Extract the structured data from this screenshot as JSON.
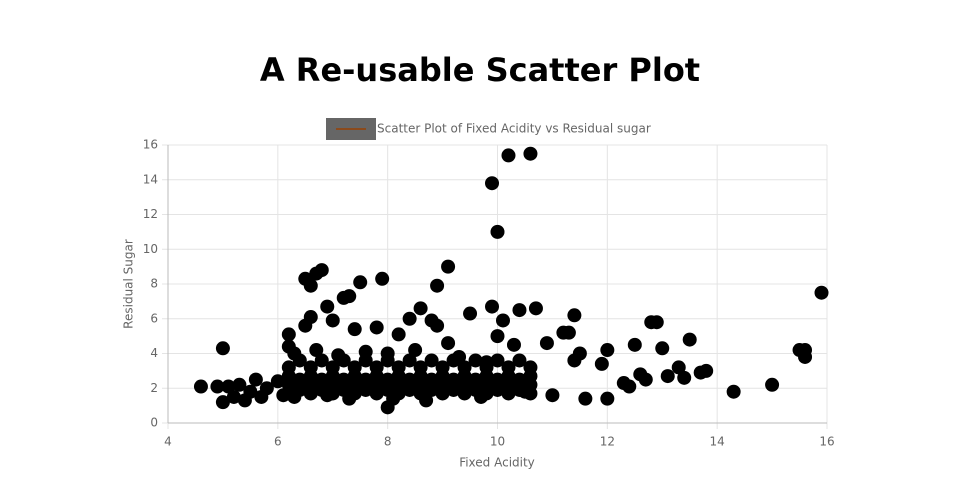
{
  "chart_data": {
    "type": "scatter",
    "title": "A Re-usable Scatter Plot",
    "x_label": "Fixed Acidity",
    "y_label": "Residual Sugar",
    "xlim": [
      4,
      16
    ],
    "xticks": [
      4,
      6,
      8,
      10,
      12,
      14,
      16
    ],
    "ylim": [
      0,
      16
    ],
    "yticks": [
      0,
      2,
      4,
      6,
      8,
      10,
      12,
      14,
      16
    ],
    "grid": true,
    "legend": "top",
    "x": [
      4.6,
      5.0,
      6.5,
      6.7,
      6.8,
      6.9,
      7.2,
      7.3,
      7.5,
      7.9,
      8.9,
      9.1,
      9.9,
      10.0,
      10.2,
      10.6,
      9.9,
      10.7,
      10.4,
      9.5,
      11.4,
      12.8,
      12.9,
      13.5,
      15.9,
      15.5,
      15.6,
      15.6,
      15.0,
      14.3,
      13.8,
      13.7,
      13.3,
      13.0,
      12.5,
      12.0,
      11.2,
      11.3,
      10.9,
      8.0,
      6.2,
      6.2,
      6.5,
      6.6,
      6.6,
      7.0,
      7.4,
      7.8,
      8.2,
      8.4,
      8.6,
      8.8,
      8.9,
      9.1,
      10.0,
      10.1,
      10.3,
      11.4,
      11.5,
      11.9,
      12.3,
      12.4,
      12.6,
      12.7,
      13.1,
      13.4,
      12.0,
      11.6,
      11.0,
      10.5,
      9.7,
      8.7,
      8.1,
      7.3,
      6.9,
      6.3,
      5.0,
      5.2,
      5.4,
      5.6,
      5.8,
      6.0,
      6.1,
      5.1,
      5.3,
      4.9,
      5.5,
      5.7,
      6.2,
      6.2,
      6.2,
      6.2,
      6.6,
      6.6,
      6.6,
      6.6,
      7.0,
      7.0,
      7.0,
      7.0,
      7.4,
      7.4,
      7.4,
      7.4,
      7.8,
      7.8,
      7.8,
      7.8,
      8.2,
      8.2,
      8.2,
      8.2,
      8.6,
      8.6,
      8.6,
      8.6,
      9.0,
      9.0,
      9.0,
      9.0,
      9.4,
      9.4,
      9.4,
      9.4,
      9.8,
      9.8,
      9.8,
      9.8,
      10.2,
      10.2,
      10.2,
      10.2,
      10.6,
      10.6,
      10.6,
      10.6,
      6.4,
      6.4,
      6.4,
      6.8,
      6.8,
      6.8,
      7.2,
      7.2,
      7.2,
      7.6,
      7.6,
      7.6,
      8.0,
      8.0,
      8.0,
      8.4,
      8.4,
      8.4,
      8.8,
      8.8,
      8.8,
      9.2,
      9.2,
      9.2,
      9.6,
      9.6,
      9.6,
      10.0,
      10.0,
      10.0,
      10.4,
      10.4,
      10.4,
      6.3,
      6.7,
      7.1,
      7.6,
      8.0,
      8.5,
      9.3,
      9.8
    ],
    "series": [
      {
        "name": "Scatter Plot of Fixed Acidity vs Residual sugar",
        "color": "#000000",
        "legend_line": "#8b4a1c",
        "legend_fill": "#666666",
        "values": [
          2.1,
          4.3,
          8.3,
          8.6,
          8.8,
          6.7,
          7.2,
          7.3,
          8.1,
          8.3,
          7.9,
          9.0,
          13.8,
          11.0,
          15.4,
          15.5,
          6.7,
          6.6,
          6.5,
          6.3,
          6.2,
          5.8,
          5.8,
          4.8,
          7.5,
          4.2,
          4.2,
          3.8,
          2.2,
          1.8,
          3.0,
          2.9,
          3.2,
          4.3,
          4.5,
          4.2,
          5.2,
          5.2,
          4.6,
          0.9,
          5.1,
          4.4,
          5.6,
          6.1,
          7.9,
          5.9,
          5.4,
          5.5,
          5.1,
          6.0,
          6.6,
          5.9,
          5.6,
          4.6,
          5.0,
          5.9,
          4.5,
          3.6,
          4.0,
          3.4,
          2.3,
          2.1,
          2.8,
          2.5,
          2.7,
          2.6,
          1.4,
          1.4,
          1.6,
          1.8,
          1.5,
          1.3,
          1.4,
          1.4,
          1.6,
          1.5,
          1.2,
          1.5,
          1.3,
          2.5,
          2.0,
          2.4,
          1.6,
          2.1,
          2.2,
          2.1,
          1.8,
          1.5,
          1.7,
          2.2,
          2.7,
          3.2,
          1.7,
          2.2,
          2.7,
          3.2,
          1.7,
          2.2,
          2.7,
          3.2,
          1.7,
          2.2,
          2.7,
          3.2,
          1.7,
          2.2,
          2.7,
          3.2,
          1.7,
          2.2,
          2.7,
          3.2,
          1.7,
          2.2,
          2.7,
          3.2,
          1.7,
          2.2,
          2.7,
          3.2,
          1.7,
          2.2,
          2.7,
          3.2,
          1.7,
          2.2,
          2.7,
          3.2,
          1.7,
          2.2,
          2.7,
          3.2,
          1.7,
          2.2,
          2.7,
          3.2,
          1.9,
          2.5,
          3.6,
          1.9,
          2.5,
          3.6,
          1.9,
          2.5,
          3.6,
          1.9,
          2.5,
          3.6,
          1.9,
          2.5,
          3.6,
          1.9,
          2.5,
          3.6,
          1.9,
          2.5,
          3.6,
          1.9,
          2.5,
          3.6,
          1.9,
          2.5,
          3.6,
          1.9,
          2.5,
          3.6,
          1.9,
          2.5,
          3.6,
          4.0,
          4.2,
          3.9,
          4.1,
          4.0,
          4.2,
          3.8,
          3.5
        ]
      }
    ]
  }
}
